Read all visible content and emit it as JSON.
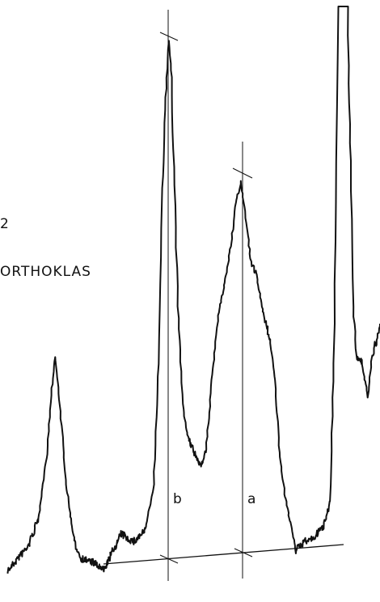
{
  "labels": {
    "number": "2",
    "mineral": "ORTHOKLAS",
    "peak_b": "b",
    "peak_a": "a"
  }
}
